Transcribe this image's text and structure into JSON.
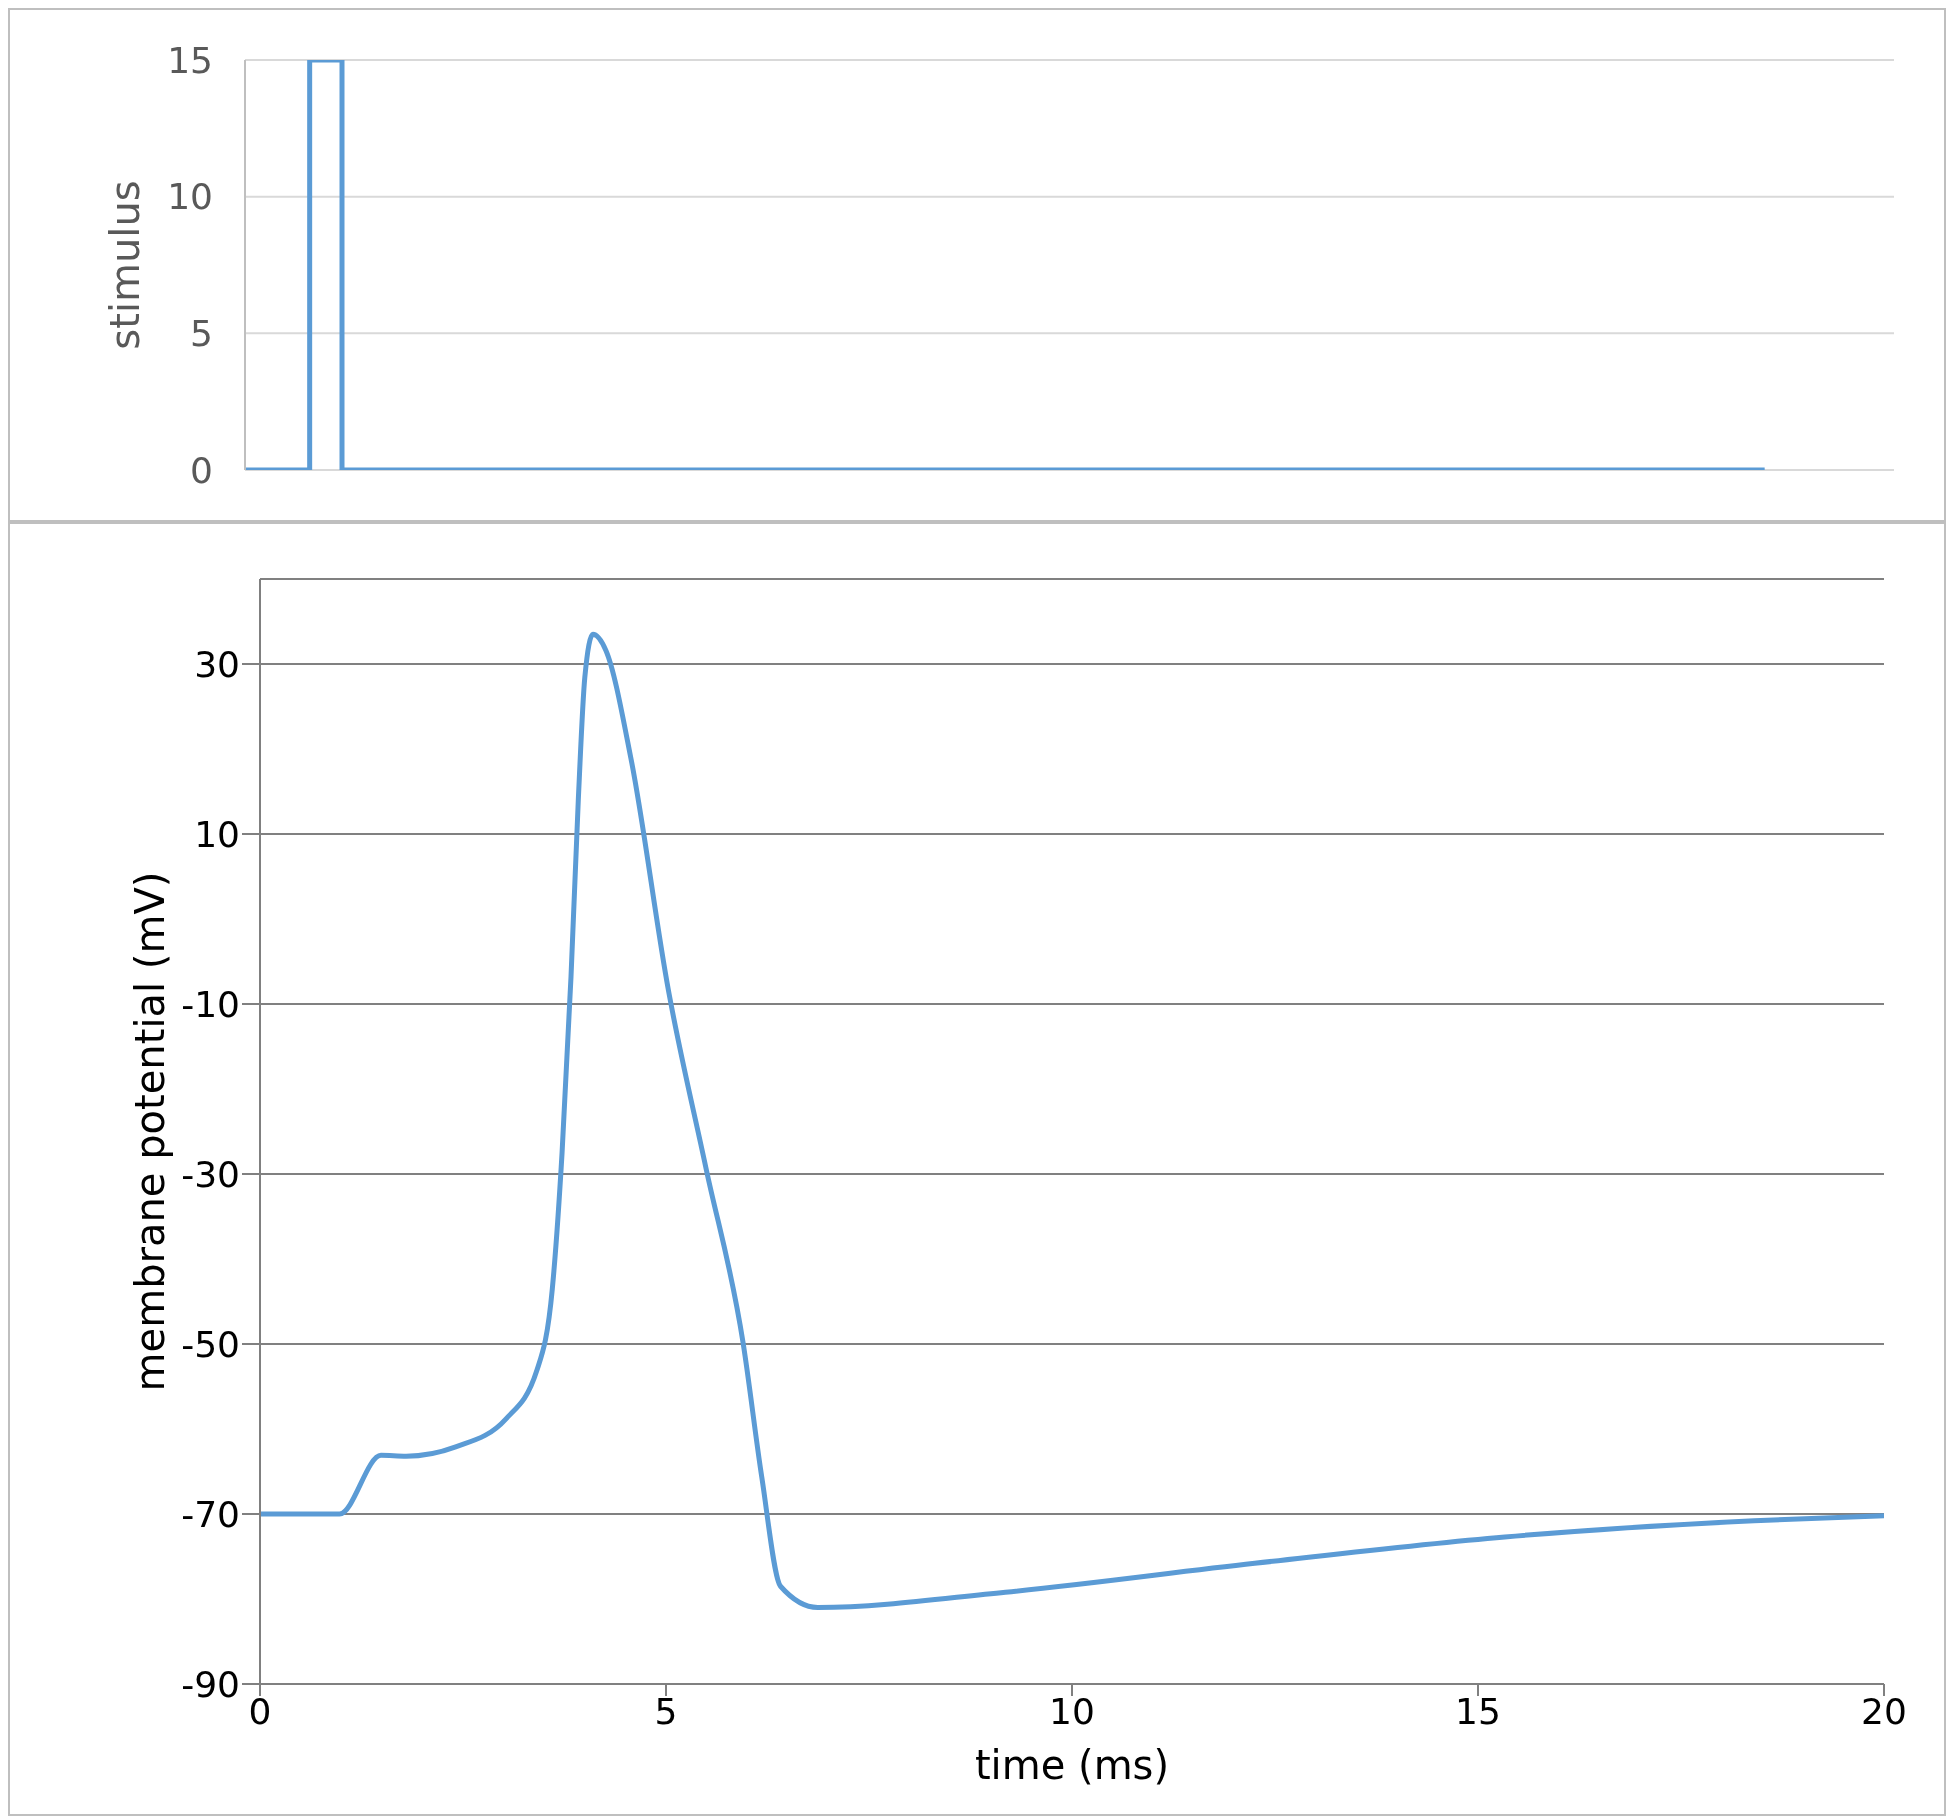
{
  "chart_data": [
    {
      "type": "step",
      "ylabel": "stimulus",
      "categories": [
        null,
        null,
        null,
        null,
        null,
        null,
        null,
        null,
        null,
        null,
        null,
        null,
        null,
        null,
        null,
        null,
        null,
        null,
        null,
        null,
        null,
        null,
        null,
        null,
        null,
        null,
        null,
        null,
        null,
        null,
        null,
        null,
        null,
        null,
        null,
        null,
        null,
        null,
        null,
        null,
        null,
        null,
        null,
        null,
        null,
        null,
        null,
        null,
        null,
        null,
        null,
        null
      ],
      "ylim": [
        0,
        15
      ],
      "yticks": [
        0,
        5,
        10,
        15
      ],
      "grid": "y",
      "marker": "none",
      "legend": false,
      "series": [
        {
          "color": "#5b9bd5",
          "values": [
            0,
            0,
            15,
            0,
            0,
            0,
            0,
            0,
            0,
            0,
            0,
            0,
            0,
            0,
            0,
            0,
            0,
            0,
            0,
            0,
            0,
            0,
            0,
            0,
            0,
            0,
            0,
            0,
            0,
            0,
            0,
            0,
            0,
            0,
            0,
            0,
            0,
            0,
            0,
            0,
            0,
            0,
            0,
            0,
            0,
            0,
            0,
            0,
            null,
            null,
            null,
            null
          ]
        }
      ]
    },
    {
      "type": "line",
      "xlabel": "time (ms)",
      "ylabel": "membrane potential (mV)",
      "xlim": [
        0,
        20
      ],
      "xticks": [
        0,
        5,
        10,
        15,
        20
      ],
      "ylim": [
        -90,
        40
      ],
      "yticks": [
        -90,
        -70,
        -50,
        -30,
        -10,
        10,
        30
      ],
      "grid": "y",
      "marker": "none",
      "legend": false,
      "series": [
        {
          "color": "#5b9bd5",
          "x": [
            0,
            0.98,
            1.49,
            1.8,
            2.41,
            3.03,
            3.41,
            3.6,
            3.72,
            3.83,
            3.92,
            4.0,
            4.1,
            4.26,
            4.57,
            5.03,
            5.49,
            5.95,
            6.18,
            6.41,
            6.87,
            9.18,
            12.25,
            15.33,
            18.4,
            20
          ],
          "values": [
            -70,
            -70,
            -63.1,
            -63.2,
            -62.1,
            -58.8,
            -53.1,
            -43.5,
            -27.5,
            -6.8,
            14,
            28.4,
            33.5,
            31.6,
            18.8,
            -8.4,
            -29.2,
            -49.9,
            -65.7,
            -78.5,
            -81,
            -79.2,
            -75.8,
            -72.7,
            -70.8,
            -70.2
          ]
        }
      ]
    }
  ]
}
